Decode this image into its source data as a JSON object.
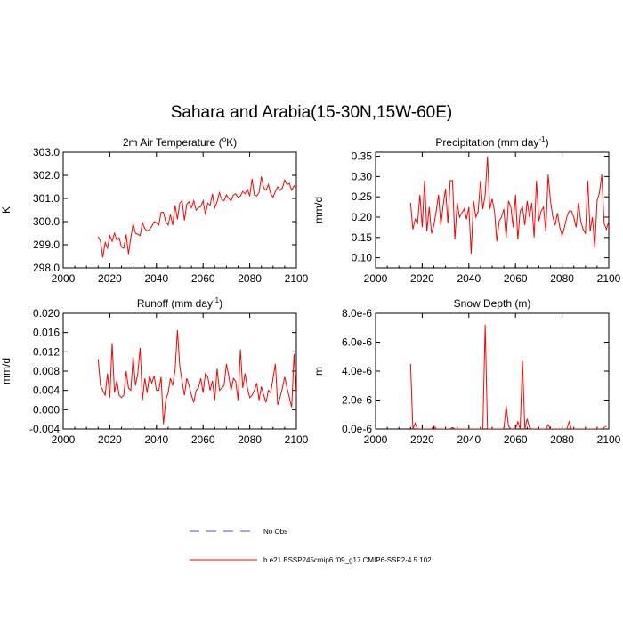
{
  "title": "Sahara and Arabia(15-30N,15W-60E)",
  "colors": {
    "series": "#ff0000",
    "obs": "#4a4aff",
    "axis": "#000000"
  },
  "legend": [
    {
      "label": "No Obs",
      "style": "dashed",
      "color": "#4a4aff"
    },
    {
      "label": "b.e21.BSSP245cmip6.f09_g17.CMIP6-SSP2-4.5.102",
      "style": "solid",
      "color": "#ff0000"
    }
  ],
  "chart_data": [
    {
      "type": "line",
      "title": "2m Air Temperature (°K)",
      "title_parts": [
        "2m Air Temperature (",
        "o",
        "K)"
      ],
      "ylabel": "K",
      "xlim": [
        2000,
        2100
      ],
      "ylim": [
        298.0,
        303.0
      ],
      "xticks": [
        2000,
        2020,
        2040,
        2060,
        2080,
        2100
      ],
      "xtick_labels": [
        "2000",
        "2020",
        "2040",
        "2060",
        "2080",
        "2100"
      ],
      "yticks": [
        298.0,
        299.0,
        300.0,
        301.0,
        302.0,
        303.0
      ],
      "ytick_labels": [
        "298.0",
        "299.0",
        "300.0",
        "301.0",
        "302.0",
        "303.0"
      ],
      "x_start": 2015,
      "series": [
        {
          "values": [
            299.35,
            299.15,
            298.45,
            299.1,
            298.85,
            299.4,
            299.15,
            299.5,
            299.2,
            299.3,
            298.9,
            298.85,
            299.45,
            298.6,
            299.3,
            299.9,
            299.5,
            299.45,
            299.4,
            299.95,
            299.7,
            299.6,
            299.65,
            299.8,
            300.0,
            299.95,
            299.85,
            300.4,
            300.4,
            300.0,
            299.85,
            300.3,
            299.85,
            300.7,
            300.1,
            300.8,
            300.9,
            300.05,
            300.75,
            300.85,
            300.6,
            300.9,
            300.5,
            300.6,
            300.65,
            300.9,
            300.3,
            300.8,
            300.7,
            301.2,
            300.6,
            300.85,
            301.25,
            300.95,
            300.9,
            301.15,
            301.0,
            300.9,
            301.15,
            301.2,
            301.05,
            301.1,
            301.3,
            301.2,
            301.4,
            301.1,
            301.85,
            301.15,
            301.1,
            301.25,
            301.95,
            301.45,
            301.35,
            301.6,
            301.2,
            301.05,
            301.3,
            301.5,
            301.35,
            301.45,
            301.8,
            301.6,
            301.65,
            301.35,
            301.55,
            301.45
          ]
        }
      ]
    },
    {
      "type": "line",
      "title": "Precipitation (mm day⁻¹)",
      "title_parts": [
        "Precipitation (mm day",
        "-1",
        ")"
      ],
      "ylabel": "mm/d",
      "xlim": [
        2000,
        2100
      ],
      "ylim": [
        0.075,
        0.36
      ],
      "xticks": [
        2000,
        2020,
        2040,
        2060,
        2080,
        2100
      ],
      "xtick_labels": [
        "2000",
        "2020",
        "2040",
        "2060",
        "2080",
        "2100"
      ],
      "yticks": [
        0.1,
        0.15,
        0.2,
        0.25,
        0.3,
        0.35
      ],
      "ytick_labels": [
        "0.10",
        "0.15",
        "0.20",
        "0.25",
        "0.30",
        "0.35"
      ],
      "x_start": 2015,
      "series": [
        {
          "values": [
            0.235,
            0.17,
            0.195,
            0.185,
            0.255,
            0.175,
            0.29,
            0.165,
            0.225,
            0.16,
            0.18,
            0.215,
            0.255,
            0.18,
            0.23,
            0.27,
            0.185,
            0.29,
            0.29,
            0.145,
            0.235,
            0.2,
            0.21,
            0.22,
            0.195,
            0.225,
            0.11,
            0.24,
            0.2,
            0.215,
            0.29,
            0.22,
            0.255,
            0.35,
            0.22,
            0.245,
            0.215,
            0.14,
            0.19,
            0.2,
            0.22,
            0.15,
            0.24,
            0.225,
            0.175,
            0.255,
            0.145,
            0.215,
            0.225,
            0.18,
            0.24,
            0.2,
            0.235,
            0.15,
            0.29,
            0.19,
            0.215,
            0.225,
            0.165,
            0.305,
            0.24,
            0.2,
            0.18,
            0.21,
            0.175,
            0.155,
            0.175,
            0.2,
            0.215,
            0.215,
            0.2,
            0.175,
            0.235,
            0.19,
            0.17,
            0.16,
            0.29,
            0.165,
            0.2,
            0.125,
            0.24,
            0.26,
            0.305,
            0.185,
            0.17,
            0.19,
            0.165,
            0.185,
            0.145,
            0.27
          ]
        }
      ]
    },
    {
      "type": "line",
      "title": "Runoff (mm day⁻¹)",
      "title_parts": [
        "Runoff (mm day",
        "-1",
        ")"
      ],
      "ylabel": "mm/d",
      "xlim": [
        2000,
        2100
      ],
      "ylim": [
        -0.004,
        0.02
      ],
      "xticks": [
        2000,
        2020,
        2040,
        2060,
        2080,
        2100
      ],
      "xtick_labels": [
        "2000",
        "2020",
        "2040",
        "2060",
        "2080",
        "2100"
      ],
      "yticks": [
        -0.004,
        0.0,
        0.004,
        0.008,
        0.012,
        0.016,
        0.02
      ],
      "ytick_labels": [
        "-0.004",
        "0.000",
        "0.004",
        "0.008",
        "0.012",
        "0.016",
        "0.020"
      ],
      "x_start": 2015,
      "series": [
        {
          "values": [
            0.0105,
            0.005,
            0.004,
            0.003,
            0.0075,
            0.0025,
            0.0138,
            0.0035,
            0.006,
            0.003,
            0.0025,
            0.003,
            0.008,
            0.0045,
            0.004,
            0.011,
            0.005,
            0.0075,
            0.0128,
            0.002,
            0.0065,
            0.0035,
            0.007,
            0.0055,
            0.007,
            0.004,
            0.004,
            0.0068,
            -0.003,
            0.002,
            0.0035,
            0.0065,
            0.005,
            0.0083,
            0.0165,
            0.009,
            0.0058,
            0.003,
            0.0065,
            0.005,
            0.003,
            0.0015,
            0.004,
            0.0045,
            0.0065,
            0.0035,
            0.0075,
            0.0068,
            0.004,
            0.006,
            0.002,
            0.0085,
            0.004,
            0.0045,
            0.005,
            0.0095,
            0.007,
            0.004,
            0.0065,
            0.0058,
            0.002,
            0.0125,
            0.0045,
            0.0075,
            0.0045,
            0.0025,
            0.003,
            0.004,
            0.0055,
            0.002,
            0.0048,
            0.003,
            0.0015,
            0.004,
            0.0035,
            0.0065,
            0.0095,
            0.001,
            0.0025,
            0.0045,
            0.0068,
            0.0045,
            0.0025,
            0.0005,
            0.0115,
            0.003,
            0.0055,
            0.001,
            -0.0005,
            0.0035,
            0.001
          ]
        }
      ]
    },
    {
      "type": "line",
      "title": "Snow Depth (m)",
      "title_parts": [
        "Snow Depth (m)",
        "",
        ""
      ],
      "ylabel": "m",
      "xlim": [
        2000,
        2100
      ],
      "ylim": [
        0,
        8e-06
      ],
      "xticks": [
        2000,
        2020,
        2040,
        2060,
        2080,
        2100
      ],
      "xtick_labels": [
        "2000",
        "2020",
        "2040",
        "2060",
        "2080",
        "2100"
      ],
      "yticks": [
        0,
        2e-06,
        4e-06,
        6e-06,
        8e-06
      ],
      "ytick_labels": [
        "0.0e-6",
        "2.0e-6",
        "4.0e-6",
        "6.0e-6",
        "8.0e-6"
      ],
      "x_start": 2015,
      "series": [
        {
          "values": [
            4.5e-06,
            0,
            4e-07,
            0,
            0,
            0,
            0,
            0,
            0,
            0,
            2e-07,
            0,
            0,
            0,
            0,
            0,
            0,
            0,
            1e-07,
            0,
            0,
            0,
            0,
            0,
            0,
            0,
            0,
            0,
            0,
            0,
            0,
            0,
            7.2e-06,
            0,
            0,
            0,
            0,
            0,
            0,
            0,
            0,
            1.6e-06,
            2e-07,
            0,
            0,
            0,
            5e-07,
            0,
            4.7e-06,
            0,
            7e-07,
            1e-07,
            0,
            0,
            0,
            0,
            0,
            0,
            0,
            3e-07,
            0,
            0,
            0,
            0,
            0,
            0,
            0,
            0,
            5e-07,
            0,
            0,
            0,
            0,
            0,
            0,
            0,
            0,
            0,
            0,
            0,
            0,
            0,
            0,
            1e-07,
            2e-07
          ]
        }
      ]
    }
  ]
}
